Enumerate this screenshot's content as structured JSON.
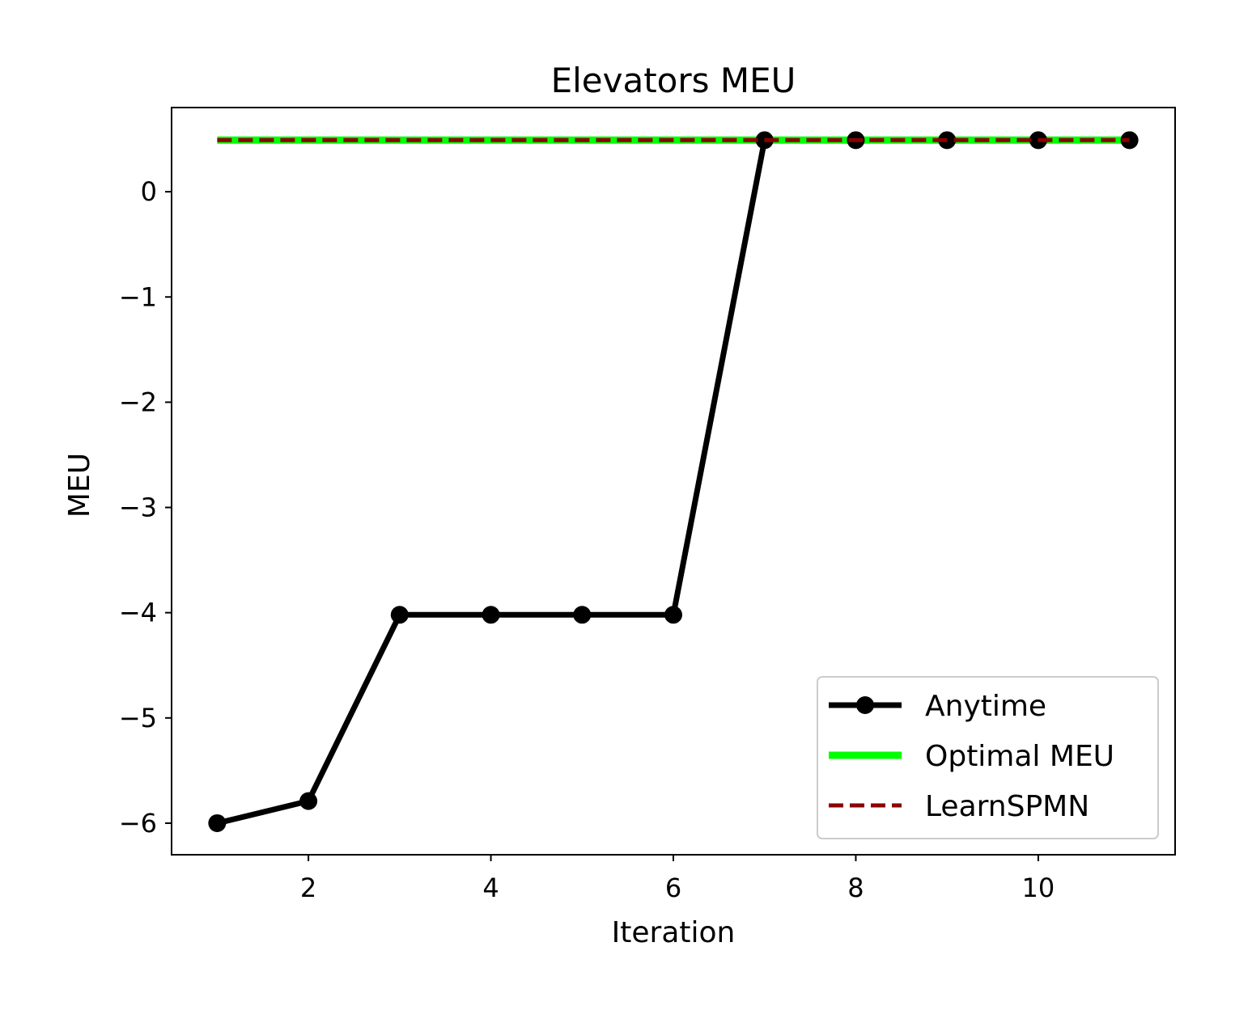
{
  "chart_data": {
    "type": "line",
    "title": "Elevators MEU",
    "xlabel": "Iteration",
    "ylabel": "MEU",
    "xlim": [
      0.5,
      11.5
    ],
    "ylim": [
      -6.3,
      0.8
    ],
    "xticks": [
      2,
      4,
      6,
      8,
      10
    ],
    "yticks": [
      0,
      -1,
      -2,
      -3,
      -4,
      -5,
      -6
    ],
    "xtick_labels": [
      "2",
      "4",
      "6",
      "8",
      "10"
    ],
    "ytick_labels": [
      "0",
      "−1",
      "−2",
      "−3",
      "−4",
      "−5",
      "−6"
    ],
    "grid": false,
    "legend_position": "lower-right",
    "series": [
      {
        "name": "Anytime",
        "style": "solid-with-markers",
        "color": "#000000",
        "x": [
          1,
          2,
          3,
          4,
          5,
          6,
          7,
          8,
          9,
          10,
          11
        ],
        "y": [
          -6.0,
          -5.79,
          -4.02,
          -4.02,
          -4.02,
          -4.02,
          0.49,
          0.49,
          0.49,
          0.49,
          0.49
        ]
      },
      {
        "name": "Optimal MEU",
        "style": "solid",
        "color": "#00ff00",
        "x": [
          1,
          11
        ],
        "y": [
          0.49,
          0.49
        ]
      },
      {
        "name": "LearnSPMN",
        "style": "dashed",
        "color": "#8b0000",
        "x": [
          1,
          11
        ],
        "y": [
          0.49,
          0.49
        ]
      }
    ]
  }
}
